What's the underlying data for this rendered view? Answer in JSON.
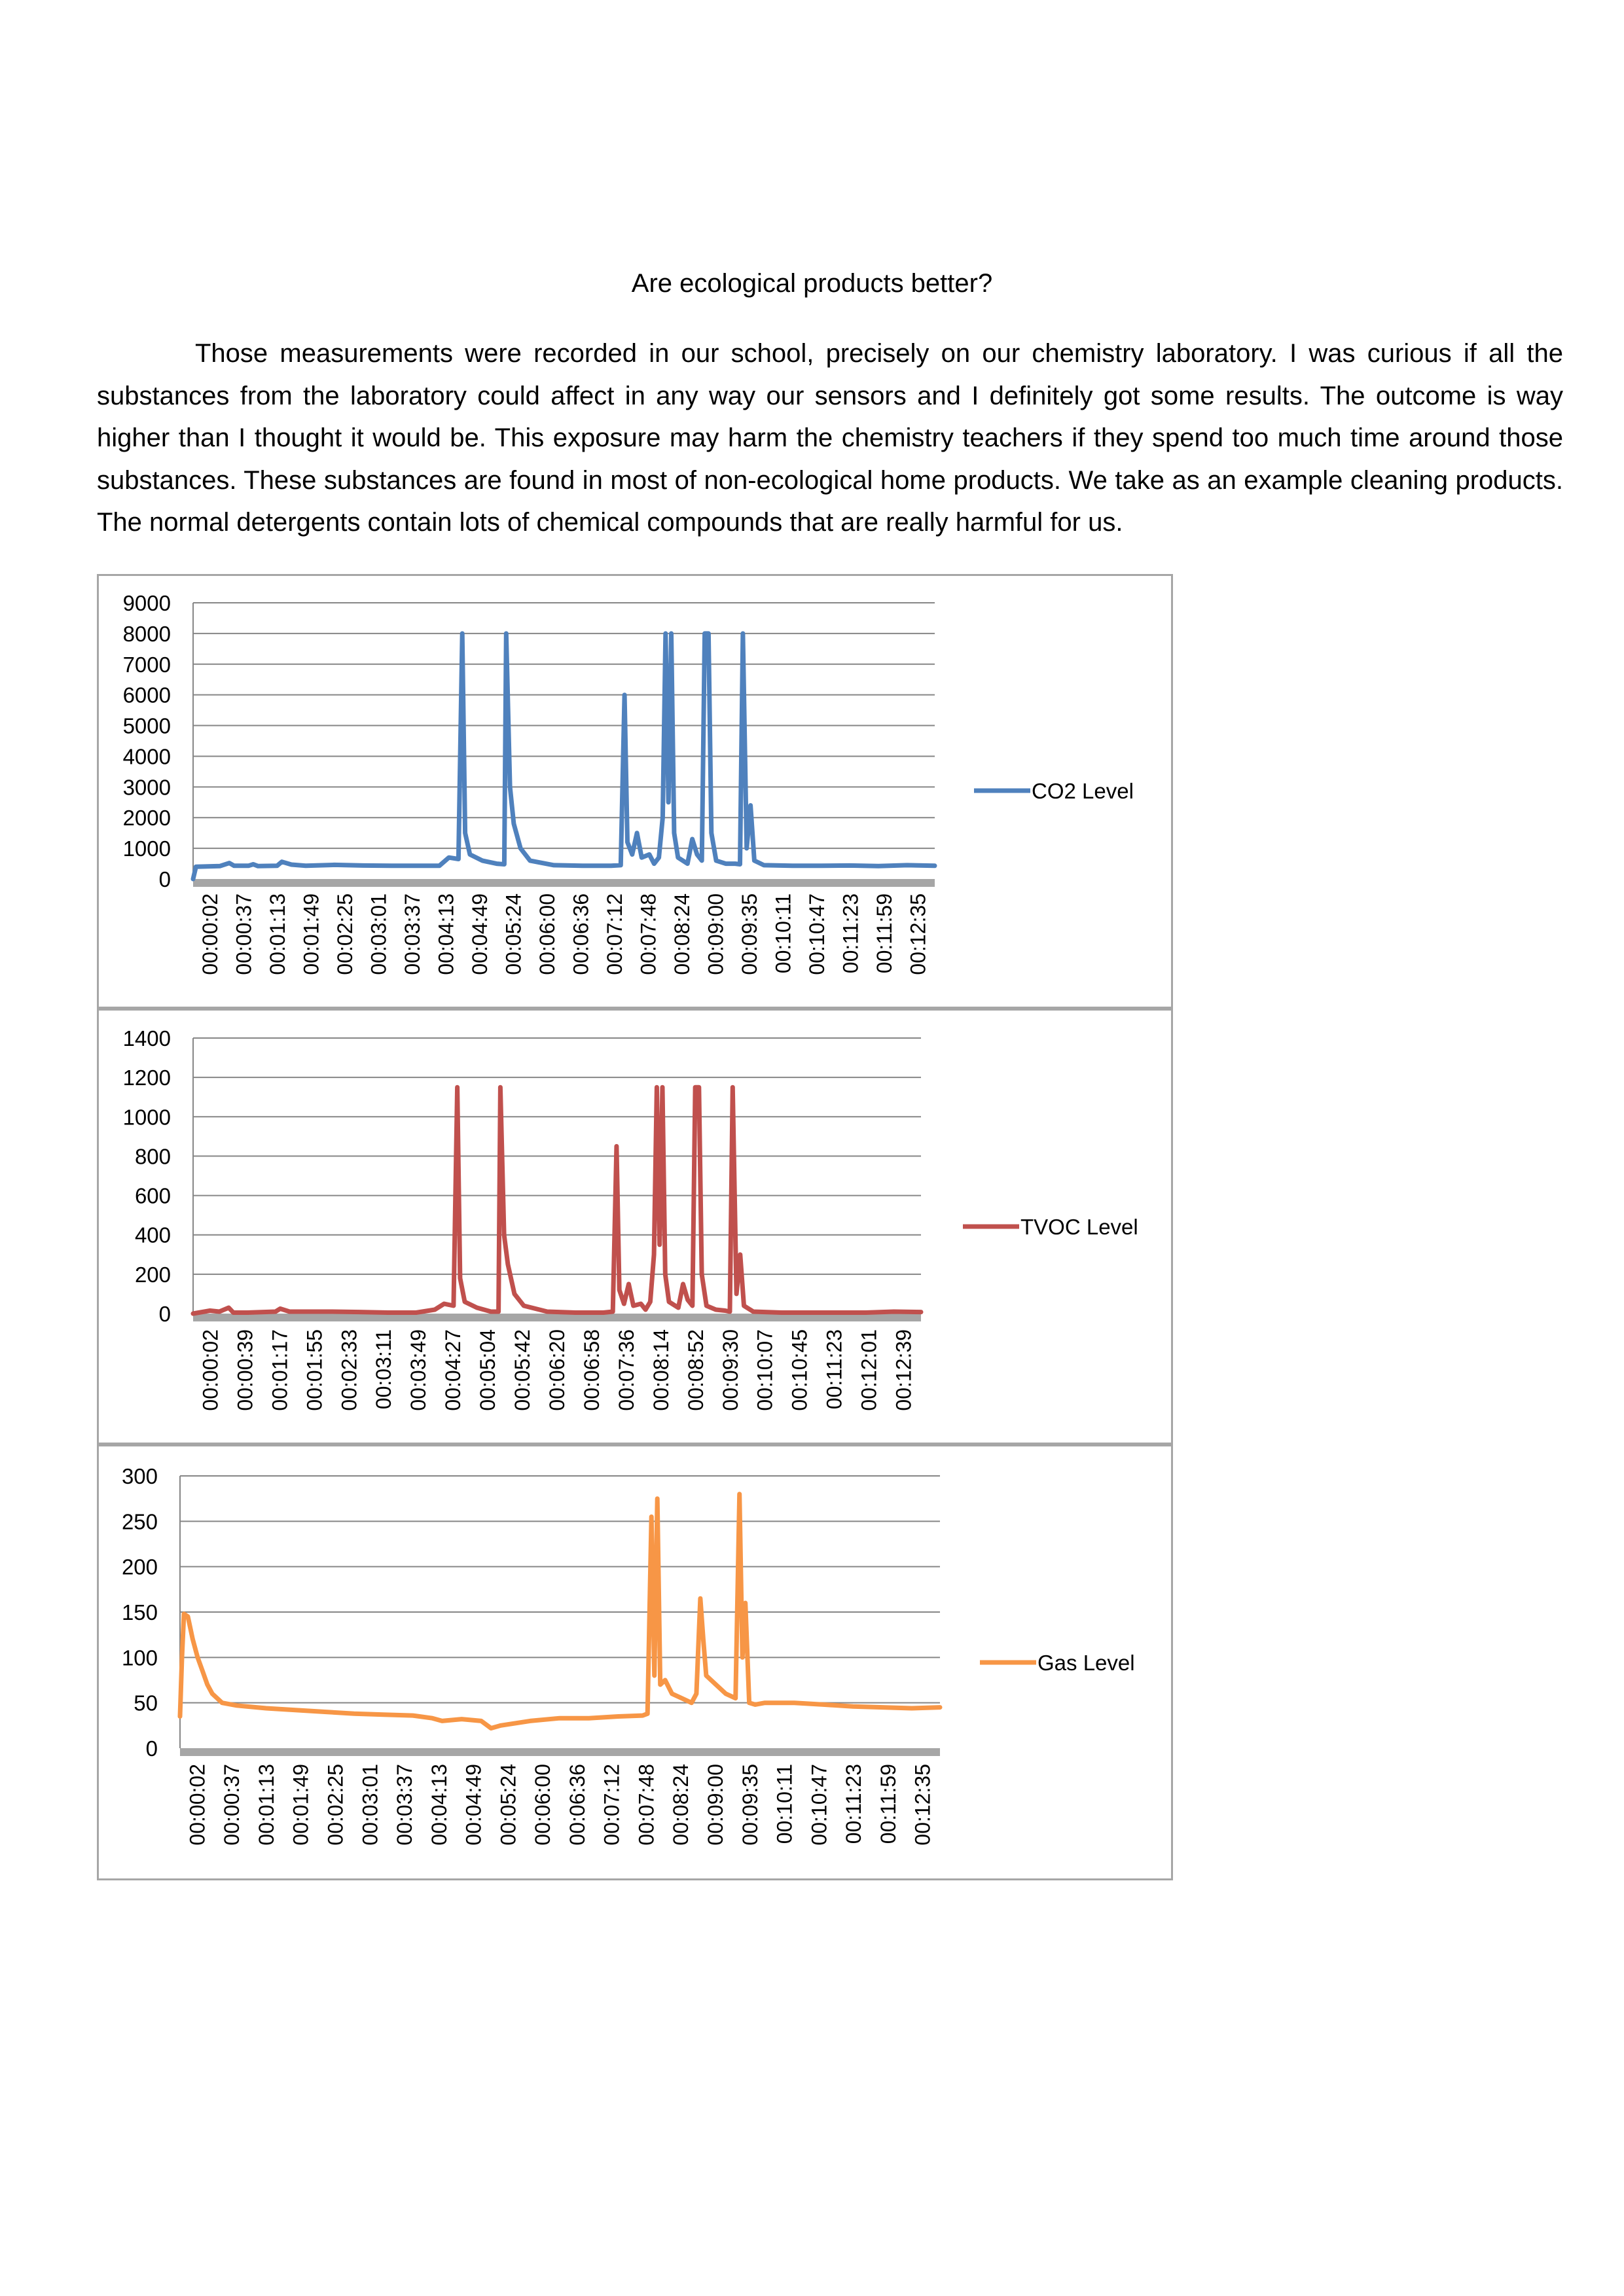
{
  "document": {
    "title": "Are ecological products better?",
    "body": "Those measurements were recorded in our school, precisely on our chemistry laboratory. I was curious if all the substances from the laboratory could affect in any way our sensors and I definitely got some results. The outcome is way higher than I thought it would be. This exposure may harm the chemistry teachers if they spend too much time around those substances. These substances are found in most of non-ecological home products. We take as an example cleaning products. The normal detergents contain lots of chemical compounds that are really harmful for us."
  },
  "chart_data": [
    {
      "type": "line",
      "title": "",
      "xlabel": "",
      "ylabel": "",
      "ylim": [
        0,
        9000
      ],
      "yticks": [
        0,
        1000,
        2000,
        3000,
        4000,
        5000,
        6000,
        7000,
        8000,
        9000
      ],
      "xrange": [
        "00:00:02",
        "00:12:59"
      ],
      "categories": [
        "00:00:02",
        "00:00:37",
        "00:01:13",
        "00:01:49",
        "00:02:25",
        "00:03:01",
        "00:03:37",
        "00:04:13",
        "00:04:49",
        "00:05:24",
        "00:06:00",
        "00:06:36",
        "00:07:12",
        "00:07:48",
        "00:08:24",
        "00:09:00",
        "00:09:35",
        "00:10:11",
        "00:10:47",
        "00:11:23",
        "00:11:59",
        "00:12:35"
      ],
      "grid": true,
      "legend_position": "right",
      "series": [
        {
          "name": "CO2 Level",
          "color": "#4f81bd",
          "points": [
            [
              "00:00:02",
              0
            ],
            [
              "00:00:05",
              400
            ],
            [
              "00:00:30",
              420
            ],
            [
              "00:00:40",
              520
            ],
            [
              "00:00:45",
              430
            ],
            [
              "00:01:00",
              430
            ],
            [
              "00:01:05",
              480
            ],
            [
              "00:01:10",
              420
            ],
            [
              "00:01:30",
              430
            ],
            [
              "00:01:35",
              560
            ],
            [
              "00:01:45",
              470
            ],
            [
              "00:02:00",
              430
            ],
            [
              "00:02:30",
              460
            ],
            [
              "00:03:00",
              440
            ],
            [
              "00:03:30",
              430
            ],
            [
              "00:04:00",
              430
            ],
            [
              "00:04:20",
              430
            ],
            [
              "00:04:30",
              700
            ],
            [
              "00:04:40",
              650
            ],
            [
              "00:04:44",
              8000
            ],
            [
              "00:04:47",
              1500
            ],
            [
              "00:04:52",
              800
            ],
            [
              "00:05:05",
              600
            ],
            [
              "00:05:20",
              500
            ],
            [
              "00:05:28",
              480
            ],
            [
              "00:05:30",
              8000
            ],
            [
              "00:05:34",
              3000
            ],
            [
              "00:05:38",
              1800
            ],
            [
              "00:05:45",
              1000
            ],
            [
              "00:05:55",
              600
            ],
            [
              "00:06:20",
              450
            ],
            [
              "00:06:50",
              430
            ],
            [
              "00:07:20",
              430
            ],
            [
              "00:07:30",
              450
            ],
            [
              "00:07:34",
              6000
            ],
            [
              "00:07:37",
              1200
            ],
            [
              "00:07:42",
              800
            ],
            [
              "00:07:47",
              1500
            ],
            [
              "00:07:52",
              700
            ],
            [
              "00:08:00",
              800
            ],
            [
              "00:08:05",
              500
            ],
            [
              "00:08:10",
              700
            ],
            [
              "00:08:14",
              2000
            ],
            [
              "00:08:17",
              8000
            ],
            [
              "00:08:20",
              2500
            ],
            [
              "00:08:23",
              8000
            ],
            [
              "00:08:26",
              1500
            ],
            [
              "00:08:30",
              700
            ],
            [
              "00:08:40",
              500
            ],
            [
              "00:08:45",
              1300
            ],
            [
              "00:08:50",
              800
            ],
            [
              "00:08:55",
              600
            ],
            [
              "00:08:58",
              8000
            ],
            [
              "00:09:02",
              8000
            ],
            [
              "00:09:05",
              1500
            ],
            [
              "00:09:10",
              600
            ],
            [
              "00:09:20",
              500
            ],
            [
              "00:09:30",
              500
            ],
            [
              "00:09:35",
              480
            ],
            [
              "00:09:38",
              8000
            ],
            [
              "00:09:42",
              1000
            ],
            [
              "00:09:46",
              2400
            ],
            [
              "00:09:50",
              600
            ],
            [
              "00:10:00",
              450
            ],
            [
              "00:10:30",
              430
            ],
            [
              "00:11:00",
              430
            ],
            [
              "00:11:30",
              440
            ],
            [
              "00:12:00",
              420
            ],
            [
              "00:12:30",
              450
            ],
            [
              "00:12:59",
              430
            ]
          ]
        }
      ]
    },
    {
      "type": "line",
      "title": "",
      "xlabel": "",
      "ylabel": "",
      "ylim": [
        0,
        1400
      ],
      "yticks": [
        0,
        200,
        400,
        600,
        800,
        1000,
        1200,
        1400
      ],
      "xrange": [
        "00:00:02",
        "00:12:59"
      ],
      "categories": [
        "00:00:02",
        "00:00:39",
        "00:01:17",
        "00:01:55",
        "00:02:33",
        "00:03:11",
        "00:03:49",
        "00:04:27",
        "00:05:04",
        "00:05:42",
        "00:06:20",
        "00:06:58",
        "00:07:36",
        "00:08:14",
        "00:08:52",
        "00:09:30",
        "00:10:07",
        "00:10:45",
        "00:11:23",
        "00:12:01",
        "00:12:39"
      ],
      "grid": true,
      "legend_position": "right",
      "series": [
        {
          "name": "TVOC Level",
          "color": "#c0504d",
          "points": [
            [
              "00:00:02",
              0
            ],
            [
              "00:00:20",
              15
            ],
            [
              "00:00:30",
              10
            ],
            [
              "00:00:40",
              30
            ],
            [
              "00:00:45",
              5
            ],
            [
              "00:01:00",
              5
            ],
            [
              "00:01:30",
              10
            ],
            [
              "00:01:35",
              25
            ],
            [
              "00:01:45",
              10
            ],
            [
              "00:02:30",
              10
            ],
            [
              "00:03:00",
              8
            ],
            [
              "00:03:30",
              5
            ],
            [
              "00:04:00",
              5
            ],
            [
              "00:04:20",
              20
            ],
            [
              "00:04:30",
              50
            ],
            [
              "00:04:40",
              40
            ],
            [
              "00:04:44",
              1150
            ],
            [
              "00:04:47",
              180
            ],
            [
              "00:04:52",
              60
            ],
            [
              "00:05:05",
              30
            ],
            [
              "00:05:20",
              10
            ],
            [
              "00:05:28",
              10
            ],
            [
              "00:05:30",
              1150
            ],
            [
              "00:05:34",
              400
            ],
            [
              "00:05:38",
              250
            ],
            [
              "00:05:45",
              100
            ],
            [
              "00:05:55",
              40
            ],
            [
              "00:06:20",
              10
            ],
            [
              "00:06:50",
              5
            ],
            [
              "00:07:20",
              5
            ],
            [
              "00:07:30",
              10
            ],
            [
              "00:07:34",
              850
            ],
            [
              "00:07:37",
              120
            ],
            [
              "00:07:42",
              50
            ],
            [
              "00:07:47",
              150
            ],
            [
              "00:07:52",
              40
            ],
            [
              "00:08:00",
              50
            ],
            [
              "00:08:05",
              20
            ],
            [
              "00:08:10",
              60
            ],
            [
              "00:08:14",
              300
            ],
            [
              "00:08:17",
              1150
            ],
            [
              "00:08:20",
              350
            ],
            [
              "00:08:23",
              1150
            ],
            [
              "00:08:26",
              200
            ],
            [
              "00:08:30",
              60
            ],
            [
              "00:08:40",
              30
            ],
            [
              "00:08:45",
              150
            ],
            [
              "00:08:50",
              70
            ],
            [
              "00:08:55",
              40
            ],
            [
              "00:08:58",
              1150
            ],
            [
              "00:09:02",
              1150
            ],
            [
              "00:09:05",
              200
            ],
            [
              "00:09:10",
              40
            ],
            [
              "00:09:20",
              20
            ],
            [
              "00:09:30",
              15
            ],
            [
              "00:09:35",
              10
            ],
            [
              "00:09:38",
              1150
            ],
            [
              "00:09:42",
              100
            ],
            [
              "00:09:46",
              300
            ],
            [
              "00:09:50",
              40
            ],
            [
              "00:10:00",
              10
            ],
            [
              "00:10:30",
              5
            ],
            [
              "00:11:00",
              5
            ],
            [
              "00:11:30",
              5
            ],
            [
              "00:12:00",
              5
            ],
            [
              "00:12:30",
              10
            ],
            [
              "00:12:59",
              8
            ]
          ]
        }
      ]
    },
    {
      "type": "line",
      "title": "",
      "xlabel": "",
      "ylabel": "",
      "ylim": [
        0,
        300
      ],
      "yticks": [
        0,
        50,
        100,
        150,
        200,
        250,
        300
      ],
      "xrange": [
        "00:00:02",
        "00:12:59"
      ],
      "categories": [
        "00:00:02",
        "00:00:37",
        "00:01:13",
        "00:01:49",
        "00:02:25",
        "00:03:01",
        "00:03:37",
        "00:04:13",
        "00:04:49",
        "00:05:24",
        "00:06:00",
        "00:06:36",
        "00:07:12",
        "00:07:48",
        "00:08:24",
        "00:09:00",
        "00:09:35",
        "00:10:11",
        "00:10:47",
        "00:11:23",
        "00:11:59",
        "00:12:35"
      ],
      "grid": true,
      "legend_position": "right",
      "series": [
        {
          "name": "Gas Level",
          "color": "#f79646",
          "points": [
            [
              "00:00:02",
              35
            ],
            [
              "00:00:04",
              100
            ],
            [
              "00:00:06",
              148
            ],
            [
              "00:00:10",
              145
            ],
            [
              "00:00:15",
              120
            ],
            [
              "00:00:20",
              100
            ],
            [
              "00:00:25",
              85
            ],
            [
              "00:00:30",
              70
            ],
            [
              "00:00:35",
              60
            ],
            [
              "00:00:45",
              50
            ],
            [
              "00:01:00",
              47
            ],
            [
              "00:01:30",
              44
            ],
            [
              "00:02:00",
              42
            ],
            [
              "00:02:30",
              40
            ],
            [
              "00:03:00",
              38
            ],
            [
              "00:03:30",
              37
            ],
            [
              "00:04:00",
              36
            ],
            [
              "00:04:20",
              33
            ],
            [
              "00:04:30",
              30
            ],
            [
              "00:04:50",
              32
            ],
            [
              "00:05:10",
              30
            ],
            [
              "00:05:20",
              22
            ],
            [
              "00:05:30",
              25
            ],
            [
              "00:06:00",
              30
            ],
            [
              "00:06:30",
              33
            ],
            [
              "00:07:00",
              33
            ],
            [
              "00:07:30",
              35
            ],
            [
              "00:07:55",
              36
            ],
            [
              "00:08:00",
              38
            ],
            [
              "00:08:04",
              255
            ],
            [
              "00:08:07",
              80
            ],
            [
              "00:08:10",
              275
            ],
            [
              "00:08:13",
              70
            ],
            [
              "00:08:18",
              75
            ],
            [
              "00:08:25",
              60
            ],
            [
              "00:08:35",
              55
            ],
            [
              "00:08:45",
              50
            ],
            [
              "00:08:50",
              60
            ],
            [
              "00:08:54",
              165
            ],
            [
              "00:08:57",
              120
            ],
            [
              "00:09:00",
              80
            ],
            [
              "00:09:10",
              70
            ],
            [
              "00:09:20",
              60
            ],
            [
              "00:09:30",
              55
            ],
            [
              "00:09:34",
              280
            ],
            [
              "00:09:37",
              100
            ],
            [
              "00:09:40",
              160
            ],
            [
              "00:09:44",
              50
            ],
            [
              "00:09:50",
              48
            ],
            [
              "00:10:00",
              50
            ],
            [
              "00:10:30",
              50
            ],
            [
              "00:11:00",
              48
            ],
            [
              "00:11:30",
              46
            ],
            [
              "00:12:00",
              45
            ],
            [
              "00:12:30",
              44
            ],
            [
              "00:12:59",
              45
            ]
          ]
        }
      ]
    }
  ]
}
